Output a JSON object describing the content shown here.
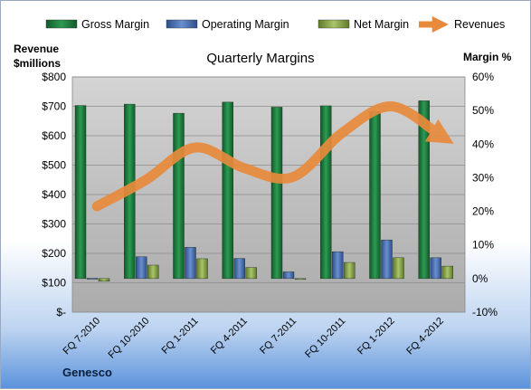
{
  "chart_data": {
    "type": "bar",
    "title": "Quarterly Margins",
    "categories": [
      "FQ 7-2010",
      "FQ 10-2010",
      "FQ 1-2011",
      "FQ 4-2011",
      "FQ 7-2011",
      "FQ 10-2011",
      "FQ 1-2012",
      "FQ 4-2012"
    ],
    "left_axis_label": [
      "Revenue",
      "$millions"
    ],
    "right_axis_label": "Margin %",
    "left_ticks": [
      "$-",
      "$100",
      "$200",
      "$300",
      "$400",
      "$500",
      "$600",
      "$700",
      "$800"
    ],
    "right_ticks": [
      "-10%",
      "0%",
      "10%",
      "20%",
      "30%",
      "40%",
      "50%",
      "60%"
    ],
    "left_range": [
      0,
      800
    ],
    "right_range": [
      -10,
      60
    ],
    "grid": true,
    "legend_position": "top",
    "brand": "Genesco",
    "series": [
      {
        "name": "Gross Margin",
        "axis": "right",
        "kind": "bar",
        "color": "#1e7d3e",
        "values": [
          51.5,
          51.9,
          49.2,
          52.5,
          51.0,
          51.4,
          49.7,
          52.9
        ]
      },
      {
        "name": "Operating Margin",
        "axis": "right",
        "kind": "bar",
        "color": "#4a6fae",
        "values": [
          0.1,
          6.5,
          9.3,
          6.0,
          2.0,
          8.0,
          11.5,
          6.2
        ]
      },
      {
        "name": "Net Margin",
        "axis": "right",
        "kind": "bar",
        "color": "#8eaa4a",
        "values": [
          -0.8,
          4.0,
          5.9,
          3.3,
          -0.2,
          4.8,
          6.2,
          3.7
        ]
      },
      {
        "name": "Revenues",
        "axis": "left",
        "kind": "line",
        "color": "#e88a3c",
        "values": [
          360,
          450,
          560,
          490,
          460,
          610,
          700,
          600
        ]
      }
    ]
  }
}
